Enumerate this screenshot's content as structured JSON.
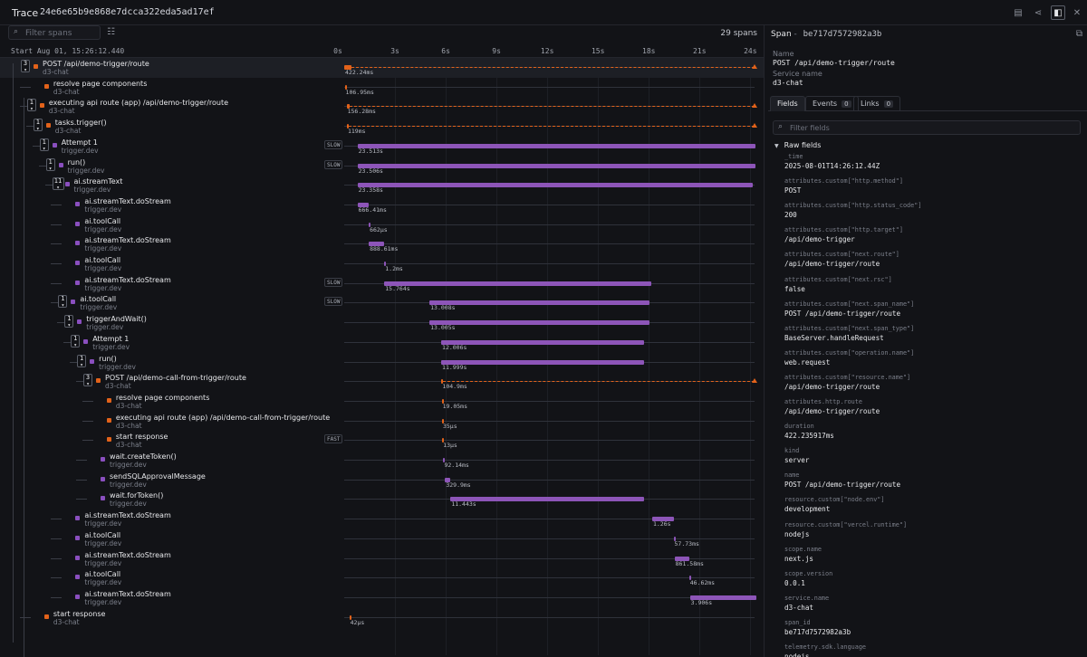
{
  "topbar": {
    "title": "Trace",
    "trace_id": "24e6e65b9e868e7dcca322eda5ad17ef"
  },
  "toolbar": {
    "search_placeholder": "Filter spans",
    "span_count": "29 spans"
  },
  "timeline": {
    "start_label": "Start Aug 01, 15:26:12.440",
    "ticks": [
      "0s",
      "3s",
      "6s",
      "9s",
      "12s",
      "15s",
      "18s",
      "21s",
      "24s"
    ],
    "max_seconds": 24.25
  },
  "spans": [
    {
      "name": "POST /api/demo-trigger/route",
      "service": "d3-chat",
      "depth": 0,
      "count": "3",
      "kind": "http",
      "start": 0,
      "duration_s": 0.42224,
      "duration": "422.24ms",
      "badge": "",
      "dashed": true
    },
    {
      "name": "resolve page components",
      "service": "d3-chat",
      "depth": 1,
      "count": "",
      "kind": "http",
      "start": 0.03,
      "duration_s": 0.107,
      "duration": "106.95ms",
      "badge": "",
      "dashed": false
    },
    {
      "name": "executing api route (app) /api/demo-trigger/route",
      "service": "d3-chat",
      "depth": 1,
      "count": "1",
      "kind": "http",
      "start": 0.14,
      "duration_s": 0.156,
      "duration": "156.28ms",
      "badge": "",
      "dashed": true
    },
    {
      "name": "tasks.trigger()",
      "service": "d3-chat",
      "depth": 2,
      "count": "1",
      "kind": "http",
      "start": 0.16,
      "duration_s": 0.119,
      "duration": "119ms",
      "badge": "",
      "dashed": true
    },
    {
      "name": "Attempt 1",
      "service": "trigger.dev",
      "depth": 3,
      "count": "1",
      "kind": "trigger",
      "start": 0.78,
      "duration_s": 23.513,
      "duration": "23.513s",
      "badge": "SLOW",
      "dashed": false
    },
    {
      "name": "run()",
      "service": "trigger.dev",
      "depth": 4,
      "count": "1",
      "kind": "trigger",
      "start": 0.78,
      "duration_s": 23.506,
      "duration": "23.506s",
      "badge": "SLOW",
      "dashed": false
    },
    {
      "name": "ai.streamText",
      "service": "trigger.dev",
      "depth": 5,
      "count": "11",
      "kind": "trigger",
      "start": 0.78,
      "duration_s": 23.358,
      "duration": "23.358s",
      "badge": "",
      "dashed": false
    },
    {
      "name": "ai.streamText.doStream",
      "service": "trigger.dev",
      "depth": 6,
      "count": "",
      "kind": "trigger",
      "start": 0.78,
      "duration_s": 0.666,
      "duration": "666.41ms",
      "badge": "",
      "dashed": false
    },
    {
      "name": "ai.toolCall",
      "service": "trigger.dev",
      "depth": 6,
      "count": "",
      "kind": "trigger",
      "start": 1.45,
      "duration_s": 0.0007,
      "duration": "662µs",
      "badge": "",
      "dashed": false
    },
    {
      "name": "ai.streamText.doStream",
      "service": "trigger.dev",
      "depth": 6,
      "count": "",
      "kind": "trigger",
      "start": 1.45,
      "duration_s": 0.889,
      "duration": "888.61ms",
      "badge": "",
      "dashed": false
    },
    {
      "name": "ai.toolCall",
      "service": "trigger.dev",
      "depth": 6,
      "count": "",
      "kind": "trigger",
      "start": 2.37,
      "duration_s": 0.0012,
      "duration": "1.2ms",
      "badge": "",
      "dashed": false
    },
    {
      "name": "ai.streamText.doStream",
      "service": "trigger.dev",
      "depth": 6,
      "count": "",
      "kind": "trigger",
      "start": 2.37,
      "duration_s": 15.764,
      "duration": "15.764s",
      "badge": "SLOW",
      "dashed": false
    },
    {
      "name": "ai.toolCall",
      "service": "trigger.dev",
      "depth": 6,
      "count": "1",
      "kind": "trigger",
      "start": 5.04,
      "duration_s": 13.008,
      "duration": "13.008s",
      "badge": "SLOW",
      "dashed": false
    },
    {
      "name": "triggerAndWait()",
      "service": "trigger.dev",
      "depth": 7,
      "count": "1",
      "kind": "trigger",
      "start": 5.04,
      "duration_s": 13.005,
      "duration": "13.005s",
      "badge": "",
      "dashed": false
    },
    {
      "name": "Attempt 1",
      "service": "trigger.dev",
      "depth": 8,
      "count": "1",
      "kind": "trigger",
      "start": 5.73,
      "duration_s": 12.006,
      "duration": "12.006s",
      "badge": "",
      "dashed": false
    },
    {
      "name": "run()",
      "service": "trigger.dev",
      "depth": 9,
      "count": "1",
      "kind": "trigger",
      "start": 5.73,
      "duration_s": 11.999,
      "duration": "11.999s",
      "badge": "",
      "dashed": false
    },
    {
      "name": "POST /api/demo-call-from-trigger/route",
      "service": "d3-chat",
      "depth": 10,
      "count": "3",
      "kind": "http",
      "start": 5.75,
      "duration_s": 0.105,
      "duration": "104.9ms",
      "badge": "",
      "dashed": true
    },
    {
      "name": "resolve page components",
      "service": "d3-chat",
      "depth": 11,
      "count": "",
      "kind": "http",
      "start": 5.76,
      "duration_s": 0.019,
      "duration": "19.05ms",
      "badge": "",
      "dashed": false
    },
    {
      "name": "executing api route (app) /api/demo-call-from-trigger/route",
      "service": "d3-chat",
      "depth": 11,
      "count": "",
      "kind": "http",
      "start": 5.78,
      "duration_s": 4e-05,
      "duration": "35µs",
      "badge": "",
      "dashed": false
    },
    {
      "name": "start response",
      "service": "d3-chat",
      "depth": 11,
      "count": "",
      "kind": "http",
      "start": 5.79,
      "duration_s": 1e-05,
      "duration": "13µs",
      "badge": "FAST",
      "dashed": false
    },
    {
      "name": "wait.createToken()",
      "service": "trigger.dev",
      "depth": 10,
      "count": "",
      "kind": "trigger",
      "start": 5.86,
      "duration_s": 0.092,
      "duration": "92.14ms",
      "badge": "",
      "dashed": false
    },
    {
      "name": "sendSQLApprovalMessage",
      "service": "trigger.dev",
      "depth": 10,
      "count": "",
      "kind": "trigger",
      "start": 5.96,
      "duration_s": 0.33,
      "duration": "329.9ms",
      "badge": "",
      "dashed": false
    },
    {
      "name": "wait.forToken()",
      "service": "trigger.dev",
      "depth": 10,
      "count": "",
      "kind": "trigger",
      "start": 6.28,
      "duration_s": 11.443,
      "duration": "11.443s",
      "badge": "",
      "dashed": false
    },
    {
      "name": "ai.streamText.doStream",
      "service": "trigger.dev",
      "depth": 6,
      "count": "",
      "kind": "trigger",
      "start": 18.2,
      "duration_s": 1.26,
      "duration": "1.26s",
      "badge": "",
      "dashed": false
    },
    {
      "name": "ai.toolCall",
      "service": "trigger.dev",
      "depth": 6,
      "count": "",
      "kind": "trigger",
      "start": 19.46,
      "duration_s": 0.058,
      "duration": "57.73ms",
      "badge": "",
      "dashed": false
    },
    {
      "name": "ai.streamText.doStream",
      "service": "trigger.dev",
      "depth": 6,
      "count": "",
      "kind": "trigger",
      "start": 19.52,
      "duration_s": 0.862,
      "duration": "861.58ms",
      "badge": "",
      "dashed": false
    },
    {
      "name": "ai.toolCall",
      "service": "trigger.dev",
      "depth": 6,
      "count": "",
      "kind": "trigger",
      "start": 20.38,
      "duration_s": 0.047,
      "duration": "46.62ms",
      "badge": "",
      "dashed": false
    },
    {
      "name": "ai.streamText.doStream",
      "service": "trigger.dev",
      "depth": 6,
      "count": "",
      "kind": "trigger",
      "start": 20.43,
      "duration_s": 3.906,
      "duration": "3.906s",
      "badge": "",
      "dashed": false
    },
    {
      "name": "start response",
      "service": "d3-chat",
      "depth": 1,
      "count": "",
      "kind": "http",
      "start": 0.3,
      "duration_s": 4e-05,
      "duration": "42µs",
      "badge": "",
      "dashed": false
    }
  ],
  "panel": {
    "title": "Span",
    "span_id": "be717d7572982a3b",
    "name_label": "Name",
    "name_value": "POST /api/demo-trigger/route",
    "service_label": "Service name",
    "service_value": "d3-chat",
    "tabs": [
      {
        "label": "Fields",
        "count": ""
      },
      {
        "label": "Events",
        "count": "0"
      },
      {
        "label": "Links",
        "count": "0"
      }
    ],
    "filter_placeholder": "Filter fields",
    "raw_title": "Raw fields",
    "fields": [
      {
        "key": "_time",
        "value": "2025-08-01T14:26:12.44Z"
      },
      {
        "key": "attributes.custom[\"http.method\"]",
        "value": "POST"
      },
      {
        "key": "attributes.custom[\"http.status_code\"]",
        "value": "200"
      },
      {
        "key": "attributes.custom[\"http.target\"]",
        "value": "/api/demo-trigger"
      },
      {
        "key": "attributes.custom[\"next.route\"]",
        "value": "/api/demo-trigger/route"
      },
      {
        "key": "attributes.custom[\"next.rsc\"]",
        "value": "false"
      },
      {
        "key": "attributes.custom[\"next.span_name\"]",
        "value": "POST /api/demo-trigger/route"
      },
      {
        "key": "attributes.custom[\"next.span_type\"]",
        "value": "BaseServer.handleRequest"
      },
      {
        "key": "attributes.custom[\"operation.name\"]",
        "value": "web.request"
      },
      {
        "key": "attributes.custom[\"resource.name\"]",
        "value": "/api/demo-trigger/route"
      },
      {
        "key": "attributes.http.route",
        "value": "/api/demo-trigger/route"
      },
      {
        "key": "duration",
        "value": "422.235917ms"
      },
      {
        "key": "kind",
        "value": "server"
      },
      {
        "key": "name",
        "value": "POST /api/demo-trigger/route"
      },
      {
        "key": "resource.custom[\"node.env\"]",
        "value": "development"
      },
      {
        "key": "resource.custom[\"vercel.runtime\"]",
        "value": "nodejs"
      },
      {
        "key": "scope.name",
        "value": "next.js"
      },
      {
        "key": "scope.version",
        "value": "0.0.1"
      },
      {
        "key": "service.name",
        "value": "d3-chat"
      },
      {
        "key": "span_id",
        "value": "be717d7572982a3b"
      },
      {
        "key": "telemetry.sdk.language",
        "value": "nodejs"
      }
    ]
  },
  "colors": {
    "http": "#e2621a",
    "trigger": "#8d55b8",
    "trigger_square": "#8a4fbf"
  }
}
